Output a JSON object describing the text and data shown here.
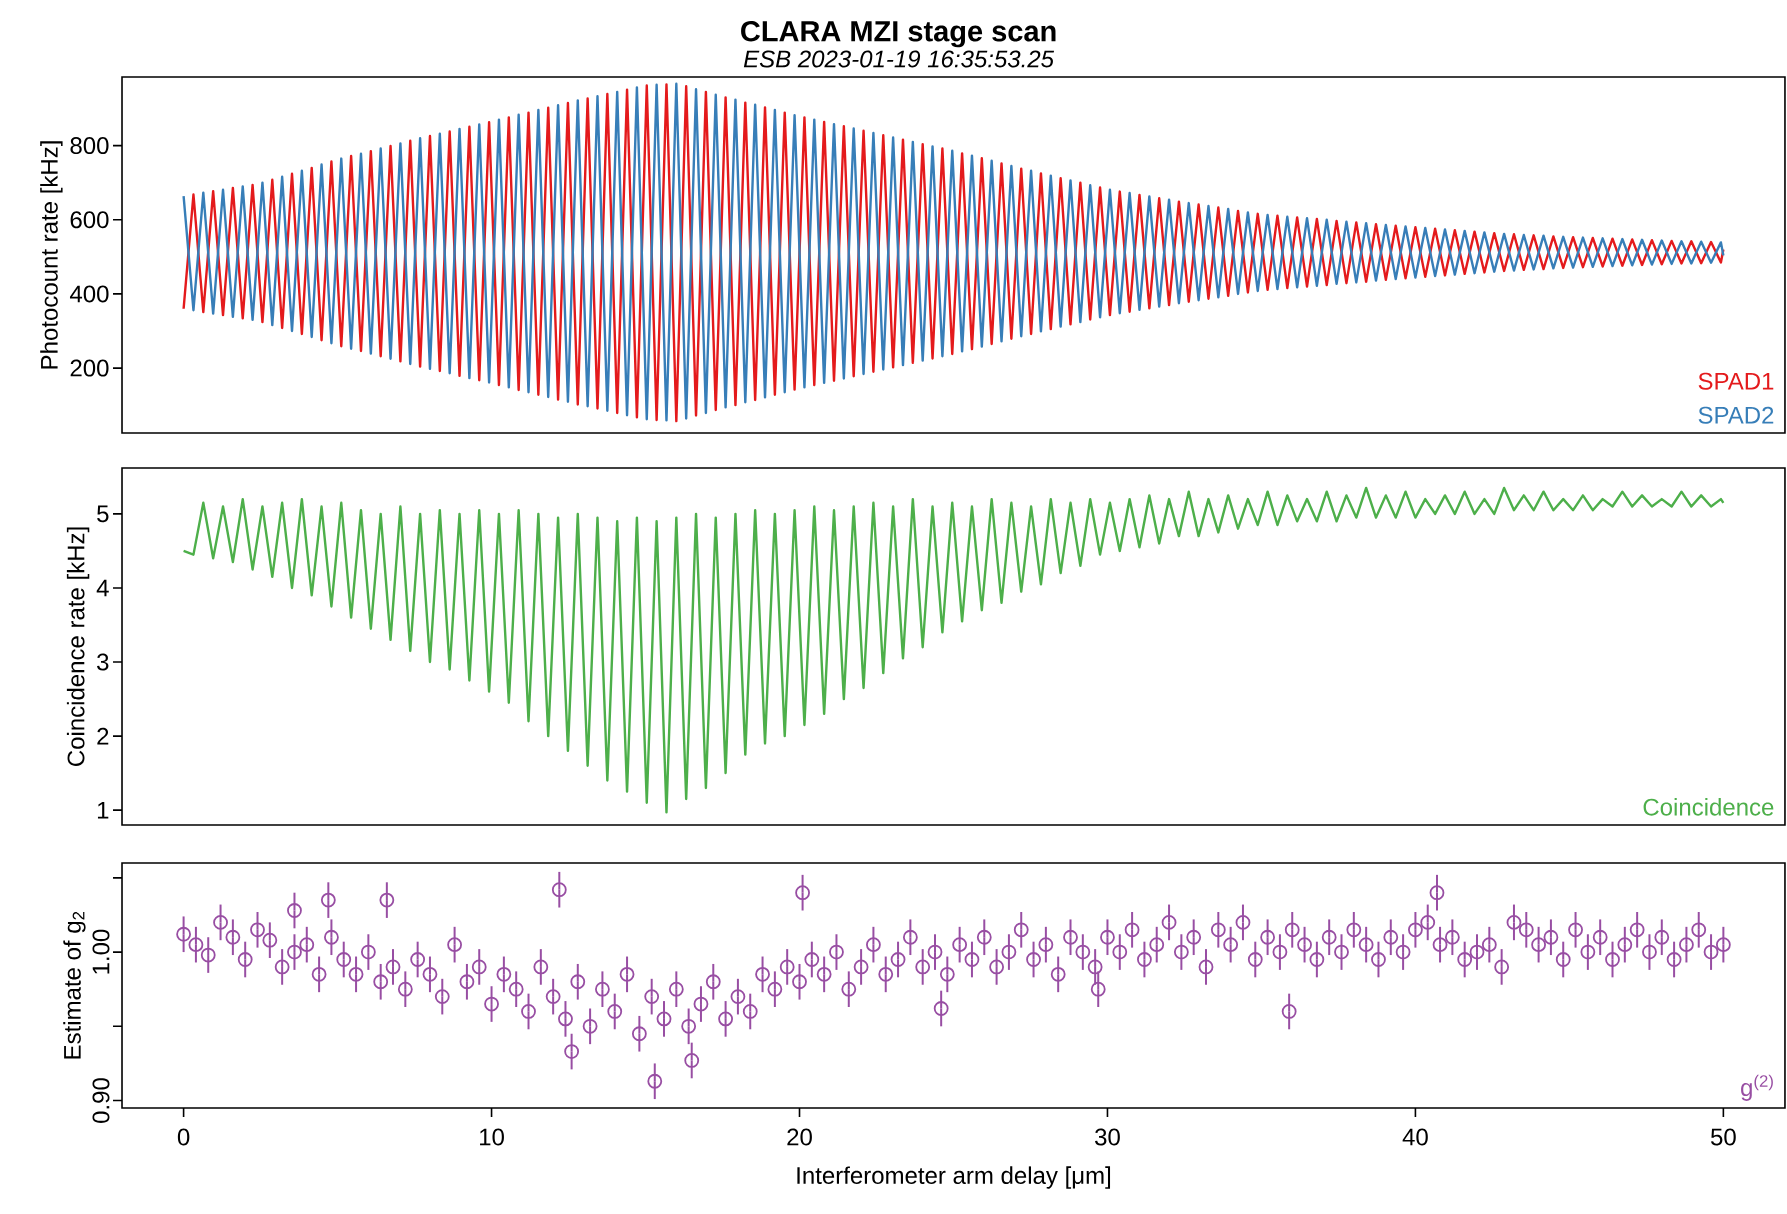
{
  "chart_data": [
    {
      "type": "line",
      "title": "CLARA MZI stage scan",
      "subtitle": "ESB 2023-01-19 16:35:53.25",
      "ylabel": "Photocount rate [kHz]",
      "x": [
        0,
        0.32,
        0.64,
        0.96,
        1.28,
        1.6,
        1.92,
        2.24,
        2.56,
        2.88,
        3.2,
        3.52,
        3.84,
        4.16,
        4.48,
        4.8,
        5.12,
        5.44,
        5.76,
        6.08,
        6.4,
        6.72,
        7.04,
        7.36,
        7.68,
        8,
        8.32,
        8.64,
        8.96,
        9.28,
        9.6,
        9.92,
        10.24,
        10.56,
        10.88,
        11.2,
        11.52,
        11.84,
        12.16,
        12.48,
        12.8,
        13.12,
        13.44,
        13.76,
        14.08,
        14.4,
        14.72,
        15.04,
        15.36,
        15.68,
        16,
        16.32,
        16.64,
        16.96,
        17.28,
        17.6,
        17.92,
        18.24,
        18.56,
        18.88,
        19.2,
        19.52,
        19.84,
        20.16,
        20.48,
        20.8,
        21.12,
        21.44,
        21.76,
        22.08,
        22.4,
        22.72,
        23.04,
        23.36,
        23.68,
        24,
        24.32,
        24.64,
        24.96,
        25.28,
        25.6,
        25.92,
        26.24,
        26.56,
        26.88,
        27.2,
        27.52,
        27.84,
        28.16,
        28.48,
        28.8,
        29.12,
        29.44,
        29.76,
        30.08,
        30.4,
        30.72,
        31.04,
        31.36,
        31.68,
        32,
        32.32,
        32.64,
        32.96,
        33.28,
        33.6,
        33.92,
        34.24,
        34.56,
        34.88,
        35.2,
        35.52,
        35.84,
        36.16,
        36.48,
        36.8,
        37.12,
        37.44,
        37.76,
        38.08,
        38.4,
        38.72,
        39.04,
        39.36,
        39.68,
        40,
        40.32,
        40.64,
        40.96,
        41.28,
        41.6,
        41.92,
        42.24,
        42.56,
        42.88,
        43.2,
        43.52,
        43.84,
        44.16,
        44.48,
        44.8,
        45.12,
        45.44,
        45.76,
        46.08,
        46.4,
        46.72,
        47.04,
        47.36,
        47.68,
        48,
        48.32,
        48.64,
        48.96,
        49.28,
        49.6,
        49.92,
        50
      ],
      "xlim": [
        -2,
        52
      ],
      "ylim": [
        25,
        985
      ],
      "yticks": [
        200,
        400,
        600,
        800
      ],
      "tick_labels": "y",
      "legend": "bottom right",
      "series": [
        {
          "name": "SPAD1",
          "color": "#e41a1c",
          "values": [
            360,
            668,
            351,
            677,
            343,
            686,
            334,
            694,
            324,
            708,
            308,
            724,
            292,
            740,
            275,
            757,
            259,
            772,
            246,
            785,
            232,
            799,
            218,
            813,
            204,
            826,
            192,
            838,
            179,
            851,
            167,
            863,
            154,
            876,
            141,
            889,
            128,
            902,
            115,
            915,
            102,
            927,
            91,
            939,
            79,
            951,
            67,
            962,
            60,
            965,
            57,
            960,
            72,
            945,
            87,
            930,
            100,
            916,
            114,
            903,
            128,
            889,
            142,
            876,
            154,
            864,
            166,
            852,
            178,
            840,
            190,
            828,
            202,
            816,
            214,
            804,
            226,
            792,
            238,
            779,
            251,
            766,
            265,
            752,
            279,
            738,
            292,
            725,
            305,
            712,
            318,
            700,
            331,
            687,
            343,
            676,
            352,
            667,
            361,
            658,
            370,
            649,
            379,
            641,
            387,
            633,
            395,
            624,
            404,
            616,
            411,
            611,
            416,
            606,
            420,
            602,
            424,
            597,
            429,
            593,
            433,
            588,
            438,
            584,
            442,
            580,
            446,
            576,
            450,
            572,
            454,
            568,
            458,
            564,
            462,
            561,
            465,
            558,
            467,
            555,
            470,
            553,
            472,
            551,
            474,
            549,
            476,
            547,
            478,
            545,
            480,
            543,
            482,
            542,
            483,
            540,
            485,
            520
          ]
        },
        {
          "name": "SPAD2",
          "color": "#377eb8",
          "values": [
            664,
            356,
            673,
            347,
            681,
            338,
            690,
            330,
            700,
            316,
            716,
            300,
            732,
            284,
            749,
            267,
            765,
            252,
            778,
            239,
            792,
            225,
            806,
            211,
            820,
            198,
            832,
            186,
            845,
            173,
            857,
            161,
            870,
            148,
            883,
            135,
            896,
            122,
            909,
            109,
            922,
            97,
            933,
            85,
            945,
            73,
            957,
            62,
            964,
            59,
            967,
            64,
            952,
            79,
            937,
            94,
            924,
            108,
            910,
            121,
            896,
            135,
            882,
            148,
            870,
            160,
            858,
            172,
            846,
            184,
            834,
            196,
            822,
            208,
            810,
            220,
            798,
            232,
            786,
            245,
            773,
            258,
            759,
            272,
            745,
            286,
            732,
            299,
            719,
            312,
            706,
            324,
            693,
            337,
            681,
            348,
            672,
            357,
            663,
            366,
            654,
            375,
            645,
            383,
            637,
            391,
            629,
            400,
            620,
            408,
            613,
            413,
            608,
            418,
            604,
            422,
            600,
            427,
            595,
            431,
            591,
            436,
            586,
            440,
            582,
            444,
            578,
            448,
            574,
            452,
            570,
            456,
            566,
            460,
            562,
            463,
            559,
            466,
            557,
            469,
            554,
            471,
            552,
            473,
            550,
            475,
            548,
            477,
            546,
            479,
            544,
            481,
            542,
            482,
            541,
            484,
            539,
            504
          ]
        }
      ]
    },
    {
      "type": "line",
      "ylabel": "Coincidence rate [kHz]",
      "x": [
        0,
        0.32,
        0.64,
        0.96,
        1.28,
        1.6,
        1.92,
        2.24,
        2.56,
        2.88,
        3.2,
        3.52,
        3.84,
        4.16,
        4.48,
        4.8,
        5.12,
        5.44,
        5.76,
        6.08,
        6.4,
        6.72,
        7.04,
        7.36,
        7.68,
        8,
        8.32,
        8.64,
        8.96,
        9.28,
        9.6,
        9.92,
        10.24,
        10.56,
        10.88,
        11.2,
        11.52,
        11.84,
        12.16,
        12.48,
        12.8,
        13.12,
        13.44,
        13.76,
        14.08,
        14.4,
        14.72,
        15.04,
        15.36,
        15.68,
        16,
        16.32,
        16.64,
        16.96,
        17.28,
        17.6,
        17.92,
        18.24,
        18.56,
        18.88,
        19.2,
        19.52,
        19.84,
        20.16,
        20.48,
        20.8,
        21.12,
        21.44,
        21.76,
        22.08,
        22.4,
        22.72,
        23.04,
        23.36,
        23.68,
        24,
        24.32,
        24.64,
        24.96,
        25.28,
        25.6,
        25.92,
        26.24,
        26.56,
        26.88,
        27.2,
        27.52,
        27.84,
        28.16,
        28.48,
        28.8,
        29.12,
        29.44,
        29.76,
        30.08,
        30.4,
        30.72,
        31.04,
        31.36,
        31.68,
        32,
        32.32,
        32.64,
        32.96,
        33.28,
        33.6,
        33.92,
        34.24,
        34.56,
        34.88,
        35.2,
        35.52,
        35.84,
        36.16,
        36.48,
        36.8,
        37.12,
        37.44,
        37.76,
        38.08,
        38.4,
        38.72,
        39.04,
        39.36,
        39.68,
        40,
        40.32,
        40.64,
        40.96,
        41.28,
        41.6,
        41.92,
        42.24,
        42.56,
        42.88,
        43.2,
        43.52,
        43.84,
        44.16,
        44.48,
        44.8,
        45.12,
        45.44,
        45.76,
        46.08,
        46.4,
        46.72,
        47.04,
        47.36,
        47.68,
        48,
        48.32,
        48.64,
        48.96,
        49.28,
        49.6,
        49.92,
        50
      ],
      "xlim": [
        -2,
        52
      ],
      "ylim": [
        0.8,
        5.62
      ],
      "yticks": [
        1,
        2,
        3,
        4,
        5
      ],
      "tick_labels": "y",
      "legend": "bottom right",
      "series": [
        {
          "name": "Coincidence",
          "color": "#4daf4a",
          "values": [
            4.5,
            4.45,
            5.15,
            4.4,
            5.1,
            4.35,
            5.2,
            4.25,
            5.1,
            4.15,
            5.15,
            4.0,
            5.2,
            3.9,
            5.1,
            3.75,
            5.15,
            3.6,
            5.05,
            3.45,
            5.0,
            3.3,
            5.1,
            3.15,
            5.0,
            3.0,
            5.05,
            2.9,
            5.0,
            2.75,
            5.05,
            2.6,
            5.0,
            2.45,
            5.05,
            2.2,
            5.0,
            2.0,
            4.95,
            1.8,
            5.0,
            1.6,
            4.95,
            1.4,
            4.9,
            1.25,
            4.95,
            1.1,
            4.9,
            0.97,
            4.95,
            1.15,
            5.0,
            1.3,
            4.95,
            1.5,
            5.0,
            1.75,
            5.05,
            1.9,
            5.0,
            2.0,
            5.05,
            2.15,
            5.1,
            2.3,
            5.05,
            2.5,
            5.1,
            2.65,
            5.15,
            2.85,
            5.1,
            3.05,
            5.2,
            3.2,
            5.1,
            3.4,
            5.15,
            3.55,
            5.1,
            3.7,
            5.2,
            3.8,
            5.15,
            3.95,
            5.1,
            4.05,
            5.2,
            4.2,
            5.15,
            4.3,
            5.2,
            4.45,
            5.15,
            4.5,
            5.2,
            4.55,
            5.25,
            4.6,
            5.2,
            4.7,
            5.3,
            4.7,
            5.2,
            4.75,
            5.25,
            4.8,
            5.2,
            4.85,
            5.3,
            4.85,
            5.25,
            4.9,
            5.2,
            4.9,
            5.3,
            4.9,
            5.25,
            4.95,
            5.35,
            4.95,
            5.25,
            4.95,
            5.3,
            4.95,
            5.2,
            5.0,
            5.25,
            5.0,
            5.3,
            5.0,
            5.2,
            5.0,
            5.35,
            5.05,
            5.25,
            5.05,
            5.3,
            5.05,
            5.2,
            5.05,
            5.25,
            5.05,
            5.2,
            5.1,
            5.3,
            5.1,
            5.25,
            5.1,
            5.2,
            5.1,
            5.3,
            5.1,
            5.25,
            5.1,
            5.2,
            5.15
          ]
        }
      ]
    },
    {
      "type": "scatter",
      "xlabel": "Interferometer arm delay [μm]",
      "ylabel": "Estimate of g$_{2}$",
      "xlim": [
        -2,
        52
      ],
      "ylim": [
        0.895,
        1.06
      ],
      "xticks": [
        0,
        10,
        20,
        30,
        40,
        50
      ],
      "yticks": [
        {
          "value": 0.9,
          "label": "0.90"
        },
        {
          "value": 0.95,
          "label": null
        },
        {
          "value": 1.0,
          "label": "1.00"
        },
        {
          "value": 1.05,
          "label": null
        }
      ],
      "marker": "circle",
      "legend": "bottom right",
      "series": [
        {
          "name": "g$^{(2)}$",
          "color": "#984ea3",
          "x": [
            0,
            0.4,
            0.8,
            1.2,
            1.6,
            2,
            2.4,
            2.8,
            3.2,
            3.6,
            4,
            4.4,
            4.8,
            5.2,
            5.6,
            6,
            6.4,
            6.8,
            7.2,
            7.6,
            8,
            8.4,
            8.8,
            9.2,
            9.6,
            10,
            10.4,
            10.8,
            11.2,
            11.6,
            12,
            12.4,
            12.8,
            13.2,
            13.6,
            14,
            14.4,
            14.8,
            15.2,
            15.6,
            16,
            16.4,
            16.8,
            17.2,
            17.6,
            18,
            18.4,
            18.8,
            19.2,
            19.6,
            20,
            20.4,
            20.8,
            21.2,
            21.6,
            22,
            22.4,
            22.8,
            23.2,
            23.6,
            24,
            24.4,
            24.8,
            25.2,
            25.6,
            26,
            26.4,
            26.8,
            27.2,
            27.6,
            28,
            28.4,
            28.8,
            29.2,
            29.6,
            30,
            30.4,
            30.8,
            31.2,
            31.6,
            32,
            32.4,
            32.8,
            33.2,
            33.6,
            34,
            34.4,
            34.8,
            35.2,
            35.6,
            36,
            36.4,
            36.8,
            37.2,
            37.6,
            38,
            38.4,
            38.8,
            39.2,
            39.6,
            40,
            40.4,
            40.8,
            41.2,
            41.6,
            42,
            42.4,
            42.8,
            43.2,
            43.6,
            44,
            44.4,
            44.8,
            45.2,
            45.6,
            46,
            46.4,
            46.8,
            47.2,
            47.6,
            48,
            48.4,
            48.8,
            49.2,
            49.6,
            50,
            15.3,
            16.5,
            12.6,
            12.2,
            20.1,
            6.6,
            4.7,
            40.7,
            3.6,
            35.9,
            24.6,
            29.7
          ],
          "values": [
            1.012,
            1.005,
            0.998,
            1.02,
            1.01,
            0.995,
            1.015,
            1.008,
            0.99,
            1.0,
            1.005,
            0.985,
            1.01,
            0.995,
            0.985,
            1.0,
            0.98,
            0.99,
            0.975,
            0.995,
            0.985,
            0.97,
            1.005,
            0.98,
            0.99,
            0.965,
            0.985,
            0.975,
            0.96,
            0.99,
            0.97,
            0.955,
            0.98,
            0.95,
            0.975,
            0.96,
            0.985,
            0.945,
            0.97,
            0.955,
            0.975,
            0.95,
            0.965,
            0.98,
            0.955,
            0.97,
            0.96,
            0.985,
            0.975,
            0.99,
            0.98,
            0.995,
            0.985,
            1.0,
            0.975,
            0.99,
            1.005,
            0.985,
            0.995,
            1.01,
            0.99,
            1.0,
            0.985,
            1.005,
            0.995,
            1.01,
            0.99,
            1.0,
            1.015,
            0.995,
            1.005,
            0.985,
            1.01,
            1.0,
            0.99,
            1.01,
            1.0,
            1.015,
            0.995,
            1.005,
            1.02,
            1.0,
            1.01,
            0.99,
            1.015,
            1.005,
            1.02,
            0.995,
            1.01,
            1.0,
            1.015,
            1.005,
            0.995,
            1.01,
            1.0,
            1.015,
            1.005,
            0.995,
            1.01,
            1.0,
            1.015,
            1.02,
            1.005,
            1.01,
            0.995,
            1.0,
            1.005,
            0.99,
            1.02,
            1.015,
            1.005,
            1.01,
            0.995,
            1.015,
            1.0,
            1.01,
            0.995,
            1.005,
            1.015,
            1.0,
            1.01,
            0.995,
            1.005,
            1.015,
            1.0,
            1.005,
            0.913,
            0.927,
            0.933,
            1.042,
            1.04,
            1.035,
            1.035,
            1.04,
            1.028,
            0.96,
            0.962,
            0.975
          ],
          "errors": [
            0.012,
            0.012,
            0.012,
            0.012,
            0.012,
            0.012,
            0.012,
            0.012,
            0.012,
            0.012,
            0.012,
            0.012,
            0.012,
            0.012,
            0.012,
            0.012,
            0.012,
            0.012,
            0.012,
            0.012,
            0.012,
            0.012,
            0.012,
            0.012,
            0.012,
            0.012,
            0.012,
            0.012,
            0.012,
            0.012,
            0.012,
            0.012,
            0.012,
            0.012,
            0.012,
            0.012,
            0.012,
            0.012,
            0.012,
            0.012,
            0.012,
            0.012,
            0.012,
            0.012,
            0.012,
            0.012,
            0.012,
            0.012,
            0.012,
            0.012,
            0.012,
            0.012,
            0.012,
            0.012,
            0.012,
            0.012,
            0.012,
            0.012,
            0.012,
            0.012,
            0.012,
            0.012,
            0.012,
            0.012,
            0.012,
            0.012,
            0.012,
            0.012,
            0.012,
            0.012,
            0.012,
            0.012,
            0.012,
            0.012,
            0.012,
            0.012,
            0.012,
            0.012,
            0.012,
            0.012,
            0.012,
            0.012,
            0.012,
            0.012,
            0.012,
            0.012,
            0.012,
            0.012,
            0.012,
            0.012,
            0.012,
            0.012,
            0.012,
            0.012,
            0.012,
            0.012,
            0.012,
            0.012,
            0.012,
            0.012,
            0.012,
            0.012,
            0.012,
            0.012,
            0.012,
            0.012,
            0.012,
            0.012,
            0.012,
            0.012,
            0.012,
            0.012,
            0.012,
            0.012,
            0.012,
            0.012,
            0.012,
            0.012,
            0.012,
            0.012,
            0.012,
            0.012,
            0.012,
            0.012,
            0.012,
            0.012,
            0.012,
            0.012,
            0.012,
            0.012,
            0.012,
            0.012,
            0.012,
            0.012,
            0.012,
            0.012,
            0.012,
            0.012
          ]
        }
      ]
    }
  ]
}
